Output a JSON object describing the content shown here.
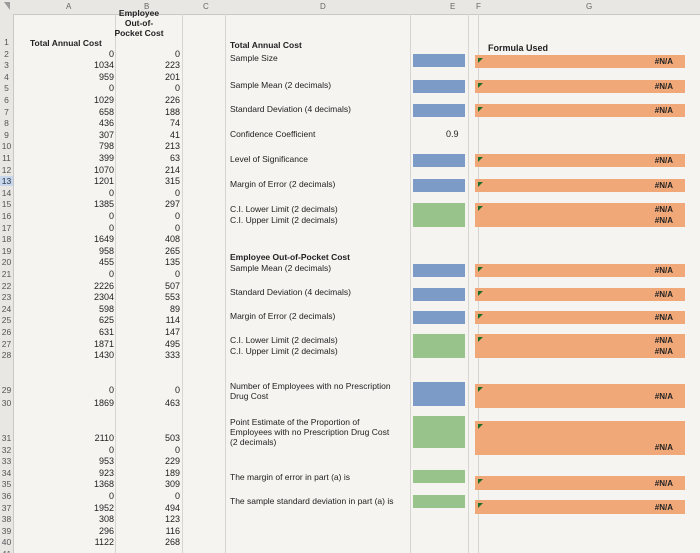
{
  "columns": [
    "A",
    "B",
    "C",
    "D",
    "E",
    "F",
    "G"
  ],
  "rownums": [
    "1",
    "2",
    "3",
    "4",
    "5",
    "6",
    "7",
    "8",
    "9",
    "10",
    "11",
    "12",
    "13",
    "14",
    "15",
    "16",
    "17",
    "18",
    "19",
    "20",
    "21",
    "22",
    "23",
    "24",
    "25",
    "26",
    "27",
    "28",
    "29",
    "30",
    "31",
    "32",
    "33",
    "34",
    "35",
    "36",
    "37",
    "38",
    "39",
    "40",
    "41"
  ],
  "selected_row": "13",
  "header_a": "Total Annual Cost",
  "header_b": "Employee Out-of-Pocket Cost",
  "col_a": [
    "0",
    "1034",
    "959",
    "0",
    "1029",
    "658",
    "436",
    "307",
    "798",
    "399",
    "1070",
    "1201",
    "0",
    "1385",
    "0",
    "0",
    "1649",
    "958",
    "455",
    "0",
    "2226",
    "2304",
    "598",
    "625",
    "631",
    "1871",
    "1430",
    "0",
    "1869",
    "2110",
    "0",
    "953",
    "923",
    "1368",
    "0",
    "1952",
    "308",
    "296",
    "1122"
  ],
  "col_b": [
    "0",
    "223",
    "201",
    "0",
    "226",
    "188",
    "74",
    "41",
    "213",
    "63",
    "214",
    "315",
    "0",
    "297",
    "0",
    "0",
    "408",
    "265",
    "135",
    "0",
    "507",
    "553",
    "89",
    "114",
    "147",
    "495",
    "333",
    "0",
    "463",
    "503",
    "0",
    "229",
    "189",
    "309",
    "0",
    "494",
    "123",
    "116",
    "268"
  ],
  "labels": {
    "tac_title": "Total Annual Cost",
    "sample_size": "Sample Size",
    "sample_mean": "Sample Mean (2 decimals)",
    "std_dev": "Standard Deviation (4 decimals)",
    "conf_coef": "Confidence Coefficient",
    "sig_level": "Level of Significance",
    "moe": "Margin of Error (2 decimals)",
    "ci_lower": "C.I. Lower Limit (2 decimals)",
    "ci_upper": "C.I. Upper Limit (2 decimals)",
    "emp_title": "Employee Out-of-Pocket Cost",
    "emp_mean": "Sample Mean (2 decimals)",
    "emp_std": "Standard Deviation (4 decimals)",
    "emp_moe": "Margin of Error (2 decimals)",
    "emp_ci_lower": "C.I. Lower Limit (2 decimals)",
    "emp_ci_upper": "C.I. Upper Limit (2 decimals)",
    "no_rx_1": "Number of Employees with no Prescription",
    "no_rx_2": "Drug Cost",
    "pe_1": "Point Estimate of the Proportion of",
    "pe_2": "Employees with no Prescription Drug Cost",
    "pe_3": "(2 decimals)",
    "moe_part_a": "The margin of error in part (a) is",
    "sd_part_a": "The sample standard deviation in part (a) is"
  },
  "confidence_value": "0.9",
  "formula_header": "Formula Used",
  "na": "#N/A",
  "colors": {
    "blue": "#7d9bc7",
    "green": "#98c48b",
    "orange": "#f0a878",
    "selected_row": "#c9d7ec"
  }
}
